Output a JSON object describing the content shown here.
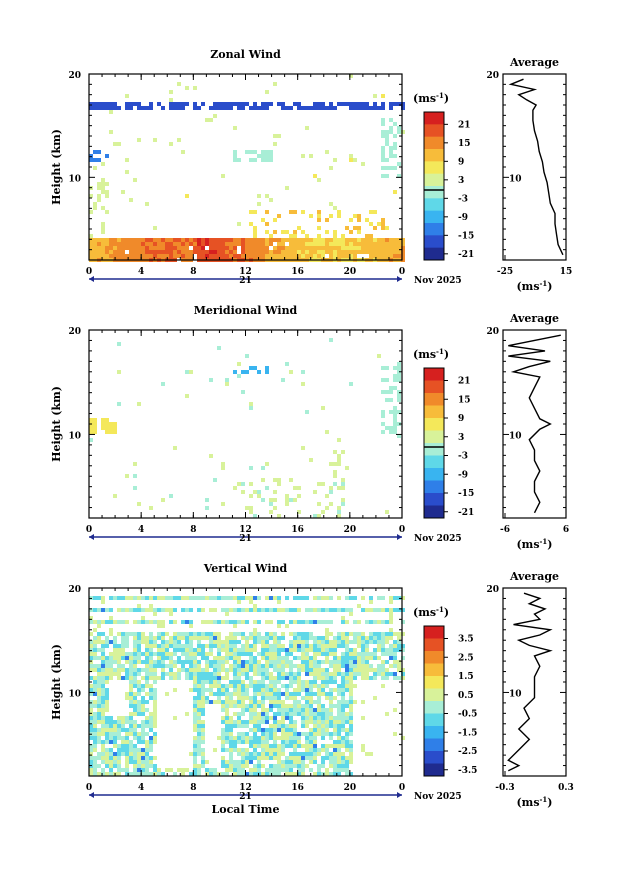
{
  "figure": {
    "date_label": "Nov 2025",
    "day_label": "21",
    "xlabel": "Local Time",
    "unit_label_prefix": "(ms",
    "unit_label_exp": "-1",
    "unit_label_suffix": ")"
  },
  "chart_data": [
    {
      "type": "heatmap",
      "title": "Zonal Wind",
      "ylabel": "Height (km)",
      "xlabel": "",
      "xlim": [
        0,
        24
      ],
      "ylim": [
        2,
        20
      ],
      "x_ticks": [
        "0",
        "4",
        "8",
        "12",
        "16",
        "20",
        "0"
      ],
      "y_ticks": [
        "20",
        "10"
      ],
      "colorbar": {
        "unit": "(ms-1)",
        "ticks": [
          "21",
          "15",
          "9",
          "3",
          "-3",
          "-9",
          "-15",
          "-21"
        ],
        "range": [
          -24,
          24
        ],
        "zero_line": 0
      },
      "field": "zonal",
      "profile": {
        "title": "Average",
        "x_ticks": [
          "-25",
          "15"
        ],
        "xlim": [
          -25,
          15
        ],
        "unit": "(ms-1)",
        "heights": [
          2.5,
          3.5,
          4.5,
          5.5,
          6.5,
          7.5,
          8.5,
          9.5,
          10.5,
          11.5,
          12.5,
          13.5,
          14.5,
          15.5,
          16.5,
          17.0,
          17.5,
          18.0,
          18.5,
          19.0,
          19.5
        ],
        "values": [
          13,
          10,
          9,
          8,
          8,
          5,
          4,
          3,
          1,
          0,
          -2,
          -3,
          -5,
          -6,
          -6,
          -4,
          -10,
          -15,
          -5,
          -20,
          -12
        ]
      }
    },
    {
      "type": "heatmap",
      "title": "Meridional Wind",
      "ylabel": "Height (km)",
      "xlabel": "",
      "xlim": [
        0,
        24
      ],
      "ylim": [
        2,
        20
      ],
      "x_ticks": [
        "0",
        "4",
        "8",
        "12",
        "16",
        "20",
        "0"
      ],
      "y_ticks": [
        "20",
        "10"
      ],
      "colorbar": {
        "unit": "(ms-1)",
        "ticks": [
          "21",
          "15",
          "9",
          "3",
          "-3",
          "-9",
          "-15",
          "-21"
        ],
        "range": [
          -24,
          24
        ],
        "zero_line": 0
      },
      "field": "meridional",
      "profile": {
        "title": "Average",
        "x_ticks": [
          "-6",
          "6"
        ],
        "xlim": [
          -6,
          6
        ],
        "unit": "(ms-1)",
        "heights": [
          2.5,
          3.5,
          4.5,
          5.5,
          6.5,
          7.5,
          8.5,
          9.5,
          10.5,
          11.0,
          11.5,
          12.5,
          13.5,
          14.5,
          15.5,
          16.0,
          16.5,
          17.0,
          17.5,
          18.0,
          18.5,
          19.0,
          19.5
        ],
        "values": [
          0,
          1,
          0,
          0,
          1,
          0,
          0,
          -1,
          1,
          3,
          1,
          0,
          -1,
          0,
          1,
          -4,
          -1,
          3,
          -5,
          2,
          -5,
          0,
          5
        ]
      }
    },
    {
      "type": "heatmap",
      "title": "Vertical Wind",
      "ylabel": "Height (km)",
      "xlabel": "Local Time",
      "xlim": [
        0,
        24
      ],
      "ylim": [
        2,
        20
      ],
      "x_ticks": [
        "0",
        "4",
        "8",
        "12",
        "16",
        "20",
        "0"
      ],
      "y_ticks": [
        "20",
        "10"
      ],
      "colorbar": {
        "unit": "(ms-1)",
        "ticks": [
          "3.5",
          "2.5",
          "1.5",
          "0.5",
          "-0.5",
          "-1.5",
          "-2.5",
          "-3.5"
        ],
        "range": [
          -4,
          4
        ],
        "zero_line": null
      },
      "field": "vertical",
      "profile": {
        "title": "Average",
        "x_ticks": [
          "-0.3",
          "0.3"
        ],
        "xlim": [
          -0.3,
          0.3
        ],
        "unit": "(ms-1)",
        "heights": [
          2.5,
          3.0,
          3.5,
          4.5,
          5.5,
          6.5,
          7.5,
          8.5,
          9.5,
          10.5,
          11.5,
          12.5,
          13.5,
          14.0,
          14.5,
          15.0,
          15.5,
          16.0,
          16.5,
          17.0,
          17.5,
          18.0,
          18.5,
          19.0,
          19.5
        ],
        "values": [
          -0.25,
          -0.15,
          -0.25,
          -0.15,
          -0.05,
          -0.15,
          -0.05,
          -0.1,
          0.0,
          0.0,
          0.0,
          0.05,
          0.0,
          0.15,
          -0.05,
          -0.15,
          0.05,
          0.15,
          -0.2,
          0.05,
          0.0,
          0.1,
          -0.05,
          0.05,
          -0.1
        ]
      }
    }
  ]
}
